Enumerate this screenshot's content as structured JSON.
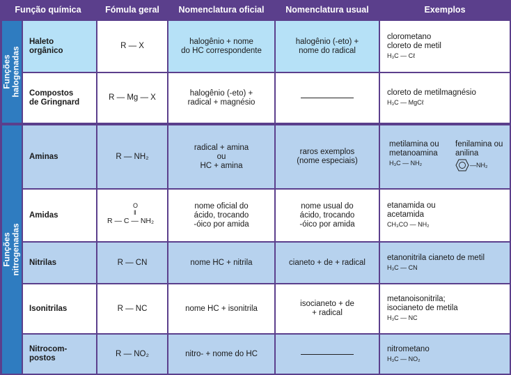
{
  "headers": {
    "funcao": "Função química",
    "formula": "Fómula geral",
    "oficial": "Nomenclatura oficial",
    "usual": "Nomenclatura usual",
    "exemplos": "Exemplos"
  },
  "groups": {
    "halogenadas": [
      "Funções",
      "halogenadas"
    ],
    "nitrogenadas": [
      "Funções",
      "nitrogenadas"
    ]
  },
  "rows": [
    {
      "name": [
        "Haleto",
        "orgânico"
      ],
      "formula": "R — X",
      "oficial": [
        "halogênio + nome",
        "do HC correspondente"
      ],
      "usual": [
        "halogênio (-eto) +",
        "nome do radical"
      ],
      "exemplos": [
        "clorometano",
        "cloreto de metil"
      ],
      "exemplos_formula": "H₃C — Cℓ"
    },
    {
      "name": [
        "Compostos",
        "de Gringnard"
      ],
      "formula": "R — Mg — X",
      "oficial": [
        "halogênio (-eto) +",
        "radical + magnésio"
      ],
      "usual": [],
      "exemplos": [
        "cloreto de metilmagnésio"
      ],
      "exemplos_formula": "H₃C — MgCℓ"
    },
    {
      "name": [
        "Aminas"
      ],
      "formula": "R — NH₂",
      "oficial": [
        "radical + amina",
        "ou",
        "HC + amina"
      ],
      "usual": [
        "raros exemplos",
        "(nome especiais)"
      ],
      "exemplos": [
        "metilamina ou",
        "metanoamina"
      ],
      "exemplos_formula": "H₃C — NH₂",
      "exemplos_b": [
        "fenilamina ou",
        "anilina"
      ],
      "exemplos_b_formula": "NH₂"
    },
    {
      "name": [
        "Amidas"
      ],
      "formula_top": "O",
      "formula_mid": "‖",
      "formula": "R — C — NH₂",
      "oficial": [
        "nome oficial do",
        "ácido, trocando",
        "-óico por amida"
      ],
      "usual": [
        "nome usual do",
        "ácido, trocando",
        "-óico por amida"
      ],
      "exemplos": [
        "etanamida ou",
        "acetamida"
      ],
      "exemplos_formula": "CH₃CO — NH₂"
    },
    {
      "name": [
        "Nitrilas"
      ],
      "formula": "R — CN",
      "oficial": [
        "nome HC + nitrila"
      ],
      "usual": [
        "cianeto + de + radical"
      ],
      "exemplos": [
        "etanonitrila cianeto de metil"
      ],
      "exemplos_formula": "H₃C — CN"
    },
    {
      "name": [
        "Isonitrilas"
      ],
      "formula": "R — NC",
      "oficial": [
        "nome HC + isonitrila"
      ],
      "usual": [
        "isocianeto + de",
        "+ radical"
      ],
      "exemplos": [
        "metanoisonitrila;",
        "isocianeto de metila"
      ],
      "exemplos_formula": "H₃C — NC"
    },
    {
      "name": [
        "Nitrocom-",
        "postos"
      ],
      "formula": "R — NO₂",
      "oficial": [
        "nitro- + nome do HC"
      ],
      "usual": [],
      "exemplos": [
        "nitrometano"
      ],
      "exemplos_formula": "H₃C — NO₂"
    }
  ]
}
